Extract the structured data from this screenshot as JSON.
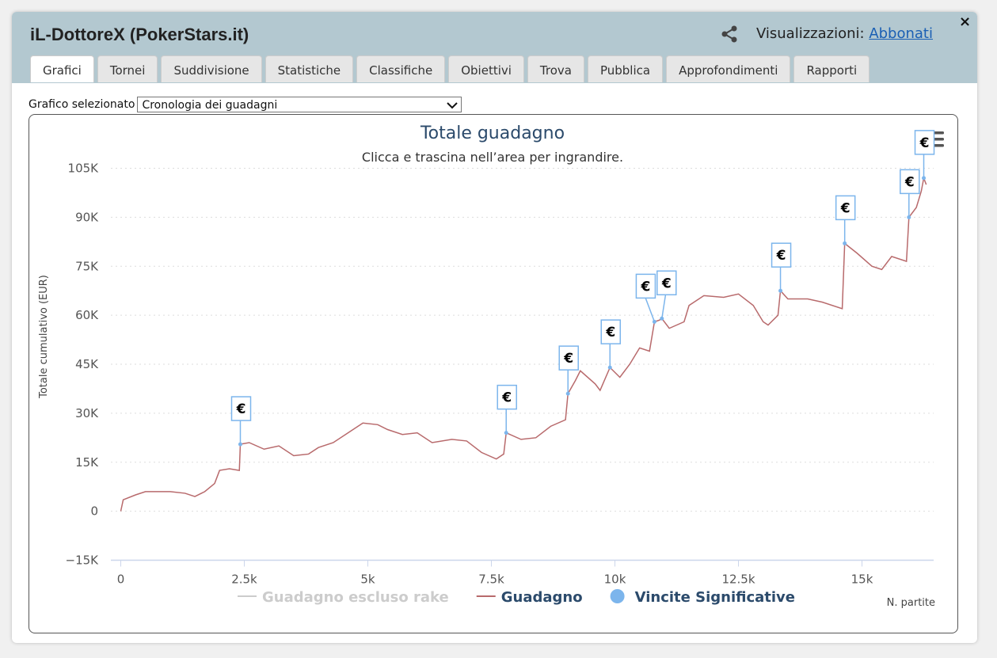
{
  "window": {
    "title": "iL-DottoreX (PokerStars.it)",
    "views_label": "Visualizzazioni:",
    "views_link": "Abbonati",
    "close": "×",
    "tabs": [
      "Grafici",
      "Tornei",
      "Suddivisione",
      "Statistiche",
      "Classifiche",
      "Obiettivi",
      "Trova",
      "Pubblica",
      "Approfondimenti",
      "Rapporti"
    ],
    "select_label": "Grafico selezionato",
    "select_value": "Cronologia dei guadagni"
  },
  "chart_data": {
    "type": "line",
    "title": "Totale guadagno",
    "subtitle": "Clicca e trascina nell’area per ingrandire.",
    "y_label": "Totale cumulativo (EUR)",
    "x_label": "N. partite",
    "marker_label": "€",
    "grid": true,
    "xlim": [
      -200,
      16450
    ],
    "ylim": [
      -15000,
      105000
    ],
    "xticks": [
      0,
      {
        "value": 2500,
        "label": "2.5k"
      },
      {
        "value": 5000,
        "label": "5k"
      },
      {
        "value": 7500,
        "label": "7.5k"
      },
      {
        "value": 10000,
        "label": "10k"
      },
      {
        "value": 12500,
        "label": "12.5k"
      },
      {
        "value": 15000,
        "label": "15k"
      }
    ],
    "yticks": [
      {
        "value": -15000,
        "label": "−15K"
      },
      {
        "value": 0,
        "label": "0"
      },
      {
        "value": 15000,
        "label": "15K"
      },
      {
        "value": 30000,
        "label": "30K"
      },
      {
        "value": 45000,
        "label": "45K"
      },
      {
        "value": 60000,
        "label": "60K"
      },
      {
        "value": 75000,
        "label": "75K"
      },
      {
        "value": 90000,
        "label": "90K"
      },
      {
        "value": 105000,
        "label": "105K"
      }
    ],
    "series": [
      {
        "name": "Guadagno escluso rake",
        "color": "#cccccc",
        "visible": false,
        "x": [],
        "values": []
      },
      {
        "name": "Guadagno",
        "color": "#b86a6c",
        "x": [
          0,
          50,
          300,
          500,
          1000,
          1300,
          1500,
          1700,
          1900,
          2000,
          2200,
          2400,
          2420,
          2600,
          2900,
          3200,
          3500,
          3800,
          4000,
          4300,
          4600,
          4900,
          5200,
          5400,
          5700,
          6000,
          6300,
          6700,
          7000,
          7300,
          7600,
          7750,
          7800,
          8100,
          8400,
          8700,
          9000,
          9050,
          9200,
          9300,
          9600,
          9700,
          9900,
          10100,
          10300,
          10500,
          10700,
          10800,
          10900,
          10950,
          11100,
          11400,
          11500,
          11800,
          12200,
          12500,
          12800,
          13000,
          13100,
          13300,
          13350,
          13500,
          13900,
          14200,
          14600,
          14650,
          14900,
          15200,
          15400,
          15600,
          15900,
          15950,
          16100,
          16200,
          16250,
          16300
        ],
        "values": [
          0,
          3500,
          5000,
          6000,
          6000,
          5500,
          4500,
          6000,
          8500,
          12500,
          13000,
          12500,
          20500,
          21000,
          19000,
          20000,
          17000,
          17500,
          19500,
          21000,
          24000,
          27000,
          26500,
          25000,
          23500,
          24000,
          21000,
          22000,
          21500,
          18000,
          16000,
          17500,
          24000,
          22000,
          22500,
          26000,
          28000,
          36000,
          40000,
          43000,
          39000,
          37000,
          44000,
          41000,
          45000,
          50000,
          49000,
          58000,
          58500,
          59000,
          56000,
          58000,
          63000,
          66000,
          65500,
          66500,
          63000,
          58000,
          57000,
          60000,
          67500,
          65000,
          65000,
          64000,
          62000,
          82000,
          79000,
          75000,
          74000,
          78000,
          76500,
          90000,
          93000,
          98000,
          102000,
          100000
        ]
      },
      {
        "name": "Vincite Significative",
        "type": "scatter",
        "color": "#7cb5ec",
        "x": [
          2420,
          7800,
          9050,
          9900,
          10800,
          10950,
          13350,
          14650,
          15950,
          16250
        ],
        "values": [
          20500,
          24000,
          36000,
          44000,
          58000,
          59000,
          67500,
          82000,
          90000,
          102000
        ]
      }
    ]
  }
}
